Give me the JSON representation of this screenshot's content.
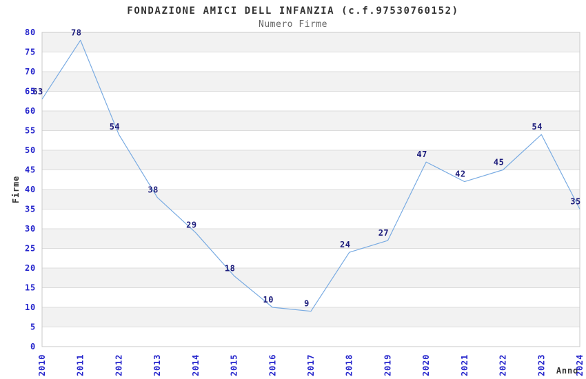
{
  "title": "FONDAZIONE AMICI DELL INFANZIA (c.f.97530760152)",
  "subtitle": "Numero Firme",
  "chart_data": {
    "type": "line",
    "title": "FONDAZIONE AMICI DELL INFANZIA (c.f.97530760152)",
    "subtitle": "Numero Firme",
    "xlabel": "Anno",
    "ylabel": "Firme",
    "categories": [
      "2010",
      "2011",
      "2012",
      "2013",
      "2014",
      "2015",
      "2016",
      "2017",
      "2018",
      "2019",
      "2020",
      "2021",
      "2022",
      "2023",
      "2024"
    ],
    "series": [
      {
        "name": "Numero Firme",
        "values": [
          63,
          78,
          54,
          38,
          29,
          18,
          10,
          9,
          24,
          27,
          47,
          42,
          45,
          54,
          35
        ]
      }
    ],
    "ylim": [
      0,
      80
    ],
    "ytick_step": 5,
    "grid": "horizontal",
    "band_stripes": true,
    "legend_position": "none",
    "data_labels_visible": true,
    "colors": {
      "line": "#79abe2",
      "data_label": "#1d1d7c",
      "tick_label": "#2424cc",
      "band": "#f2f2f2",
      "gridline": "#dcdcdc",
      "plot_border": "#c9c9c9",
      "title": "#333333",
      "subtitle": "#666666",
      "axis_title": "#333333",
      "background": "#ffffff"
    }
  }
}
